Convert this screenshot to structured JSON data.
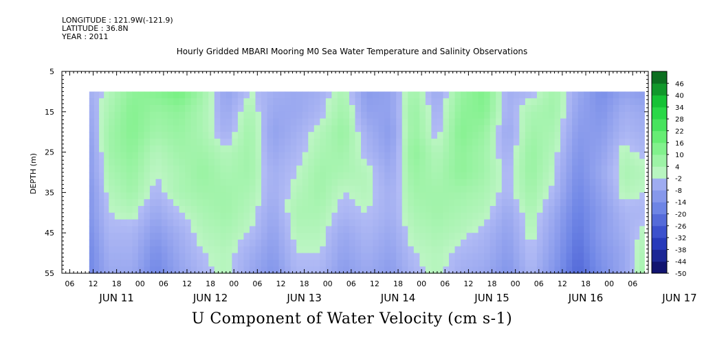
{
  "header": {
    "longitude": "LONGITUDE : 121.9W(-121.9)",
    "latitude": "LATITUDE : 36.8N",
    "year": "YEAR : 2011",
    "dataset_title": "Hourly Gridded MBARI Mooring M0 Sea Water Temperature and Salinity Observations"
  },
  "chart_data": {
    "type": "heatmap",
    "title": "U Component of Water Velocity (cm s-1)",
    "ylabel": "DEPTH (m)",
    "xlabel": "",
    "ylim": [
      55,
      5
    ],
    "y_ticks": [
      5,
      15,
      25,
      35,
      45,
      55
    ],
    "y_data_range": [
      10,
      55
    ],
    "x_hour_labels": [
      "06",
      "12",
      "18",
      "00",
      "06",
      "12",
      "18",
      "00",
      "06",
      "12",
      "18",
      "00",
      "06",
      "12",
      "18",
      "00",
      "06",
      "12",
      "18",
      "00",
      "06",
      "12",
      "18",
      "00",
      "06"
    ],
    "x_day_labels": [
      "JUN 11",
      "JUN 12",
      "JUN 13",
      "JUN 14",
      "JUN 15",
      "JUN 16",
      "JUN 17"
    ],
    "x_range_hours": [
      0,
      150
    ],
    "data_start_hour": 7,
    "colorbar": {
      "labels": [
        "46",
        "40",
        "34",
        "28",
        "22",
        "16",
        "10",
        "4",
        "-2",
        "-8",
        "-14",
        "-20",
        "-26",
        "-32",
        "-38",
        "-44",
        "-50"
      ],
      "min": -50,
      "max": 52,
      "colors_neg": [
        "#0b0b5e",
        "#2a3fc4",
        "#6f86e6",
        "#b3bcf5"
      ],
      "colors_pos": [
        "#bdf5c4",
        "#6ef07a",
        "#18d23a",
        "#0a5a1a"
      ]
    },
    "time_columns_hours": [
      7,
      12,
      18,
      24,
      30,
      36,
      42,
      48,
      54,
      60,
      66,
      72,
      78,
      84,
      90,
      96,
      102,
      108,
      114,
      120,
      126,
      132,
      138,
      144,
      149
    ],
    "depth_rows_m": [
      10,
      15,
      20,
      25,
      30,
      35,
      40,
      45,
      50,
      55
    ],
    "u_values": [
      [
        -4,
        2,
        10,
        12,
        16,
        6,
        -8,
        0,
        -4,
        -6,
        -4,
        4,
        -10,
        -8,
        6,
        -6,
        8,
        14,
        -4,
        -2,
        6,
        -6,
        -14,
        -8,
        -10
      ],
      [
        -6,
        4,
        12,
        8,
        10,
        4,
        -6,
        4,
        -6,
        -6,
        -2,
        6,
        -8,
        -8,
        8,
        -4,
        10,
        12,
        -4,
        4,
        6,
        -8,
        -12,
        -4,
        -6
      ],
      [
        -8,
        6,
        12,
        6,
        8,
        4,
        -4,
        6,
        -8,
        -4,
        2,
        8,
        -4,
        -10,
        8,
        -2,
        12,
        8,
        -6,
        6,
        4,
        -10,
        -10,
        -2,
        -4
      ],
      [
        -10,
        6,
        10,
        2,
        6,
        6,
        2,
        6,
        -6,
        -2,
        4,
        6,
        -2,
        -8,
        10,
        2,
        10,
        6,
        -4,
        8,
        2,
        -12,
        -8,
        2,
        -2
      ],
      [
        -10,
        4,
        8,
        0,
        4,
        8,
        4,
        6,
        -4,
        0,
        6,
        4,
        2,
        -6,
        8,
        4,
        10,
        6,
        -2,
        8,
        0,
        -14,
        -6,
        4,
        2
      ],
      [
        -12,
        2,
        6,
        -2,
        4,
        6,
        6,
        4,
        -4,
        2,
        6,
        0,
        2,
        -4,
        6,
        6,
        6,
        4,
        -2,
        6,
        -2,
        -16,
        -8,
        2,
        0
      ],
      [
        -12,
        0,
        2,
        -6,
        0,
        4,
        6,
        2,
        -6,
        4,
        4,
        -2,
        0,
        -4,
        4,
        6,
        4,
        2,
        -6,
        4,
        -6,
        -18,
        -10,
        -2,
        -2
      ],
      [
        -14,
        -2,
        -2,
        -10,
        -4,
        2,
        4,
        0,
        -8,
        2,
        2,
        -6,
        -2,
        -6,
        2,
        4,
        2,
        -2,
        -8,
        2,
        -8,
        -20,
        -10,
        -4,
        2
      ],
      [
        -16,
        -4,
        -4,
        -14,
        -6,
        0,
        2,
        -4,
        -10,
        0,
        0,
        -8,
        -4,
        -8,
        0,
        2,
        -2,
        -4,
        -10,
        0,
        -10,
        -22,
        -12,
        -6,
        4
      ],
      [
        -16,
        -6,
        -6,
        -16,
        -8,
        -2,
        2,
        -6,
        -12,
        -2,
        -2,
        -10,
        -6,
        -10,
        -2,
        2,
        -4,
        -6,
        -12,
        -2,
        -12,
        -24,
        -14,
        -6,
        6
      ]
    ]
  }
}
